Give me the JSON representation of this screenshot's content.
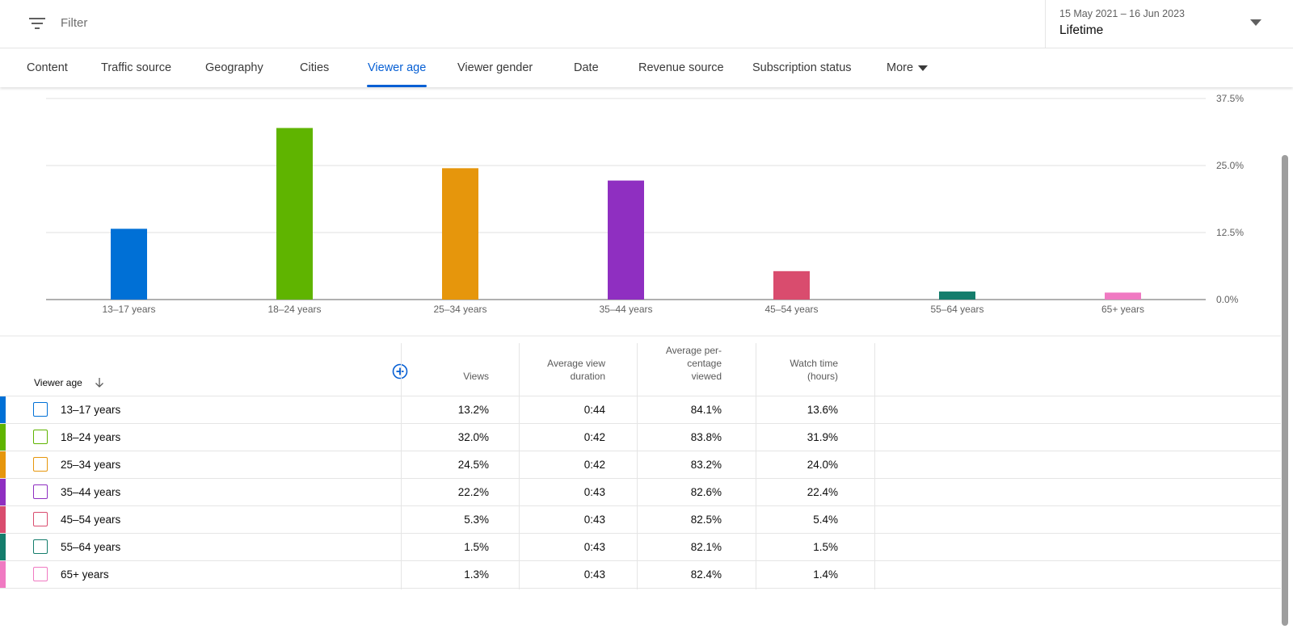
{
  "topbar": {
    "filter_placeholder": "Filter",
    "date_range": "15 May 2021 – 16 Jun 2023",
    "period": "Lifetime"
  },
  "tabs": [
    {
      "label": "Content"
    },
    {
      "label": "Traffic source"
    },
    {
      "label": "Geography"
    },
    {
      "label": "Cities"
    },
    {
      "label": "Viewer age",
      "active": true
    },
    {
      "label": "Viewer gender"
    },
    {
      "label": "Date"
    },
    {
      "label": "Revenue source"
    },
    {
      "label": "Subscription status"
    },
    {
      "label": "More"
    }
  ],
  "chart_data": {
    "type": "bar",
    "categories": [
      "13–17 years",
      "18–24 years",
      "25–34 years",
      "35–44 years",
      "45–54 years",
      "55–64 years",
      "65+ years"
    ],
    "values": [
      13.2,
      32.0,
      24.5,
      22.2,
      5.3,
      1.5,
      1.3
    ],
    "colors": [
      "#0070d6",
      "#5fb400",
      "#e6960c",
      "#8f2fc1",
      "#d94c6e",
      "#147d6c",
      "#f07ac2"
    ],
    "yticks": [
      "0.0%",
      "12.5%",
      "25.0%",
      "37.5%"
    ],
    "ylim": [
      0,
      37.5
    ],
    "y_axis_position": "right",
    "grid": true
  },
  "table": {
    "headers": {
      "age": "Viewer age",
      "views": "Views",
      "avg_duration": [
        "Average view",
        "duration"
      ],
      "avg_pct": [
        "Average per-",
        "centage",
        "viewed"
      ],
      "watch_time": [
        "Watch time",
        "(hours)"
      ]
    },
    "rows": [
      {
        "label": "13–17 years",
        "views": "13.2%",
        "avg_duration": "0:44",
        "avg_pct": "84.1%",
        "watch_time": "13.6%"
      },
      {
        "label": "18–24 years",
        "views": "32.0%",
        "avg_duration": "0:42",
        "avg_pct": "83.8%",
        "watch_time": "31.9%"
      },
      {
        "label": "25–34 years",
        "views": "24.5%",
        "avg_duration": "0:42",
        "avg_pct": "83.2%",
        "watch_time": "24.0%"
      },
      {
        "label": "35–44 years",
        "views": "22.2%",
        "avg_duration": "0:43",
        "avg_pct": "82.6%",
        "watch_time": "22.4%"
      },
      {
        "label": "45–54 years",
        "views": "5.3%",
        "avg_duration": "0:43",
        "avg_pct": "82.5%",
        "watch_time": "5.4%"
      },
      {
        "label": "55–64 years",
        "views": "1.5%",
        "avg_duration": "0:43",
        "avg_pct": "82.1%",
        "watch_time": "1.5%"
      },
      {
        "label": "65+ years",
        "views": "1.3%",
        "avg_duration": "0:43",
        "avg_pct": "82.4%",
        "watch_time": "1.4%"
      }
    ]
  },
  "icons": {
    "filter": "filter-icon",
    "date_dropdown": "caret-down-icon",
    "sort": "arrow-down-icon",
    "add_column": "add-circle-icon"
  }
}
